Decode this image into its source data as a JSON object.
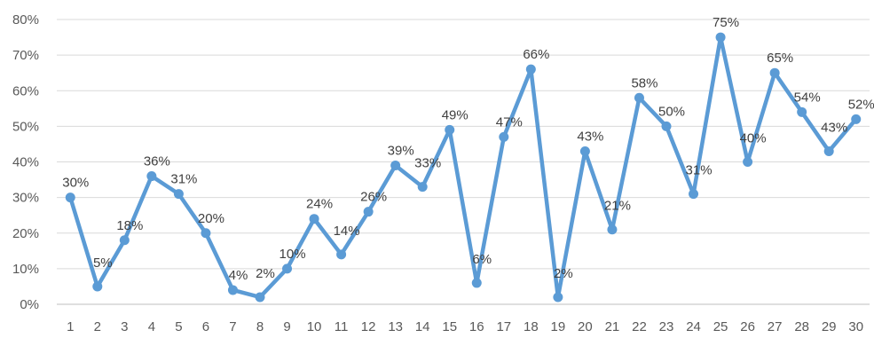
{
  "chart_data": {
    "type": "line",
    "title": "",
    "xlabel": "",
    "ylabel": "",
    "grid": true,
    "legend": "none",
    "ylim": [
      0,
      80
    ],
    "y_ticks": [
      0,
      10,
      20,
      30,
      40,
      50,
      60,
      70,
      80
    ],
    "y_tick_labels": [
      "0%",
      "10%",
      "20%",
      "30%",
      "40%",
      "50%",
      "60%",
      "70%",
      "80%"
    ],
    "categories": [
      "1",
      "2",
      "3",
      "4",
      "5",
      "6",
      "7",
      "8",
      "9",
      "10",
      "11",
      "12",
      "13",
      "14",
      "15",
      "16",
      "17",
      "18",
      "19",
      "20",
      "21",
      "22",
      "23",
      "24",
      "25",
      "26",
      "27",
      "28",
      "29",
      "30"
    ],
    "series": [
      {
        "values": [
          30,
          5,
          18,
          36,
          31,
          20,
          4,
          2,
          10,
          24,
          14,
          26,
          39,
          33,
          49,
          6,
          47,
          66,
          2,
          43,
          21,
          58,
          50,
          31,
          75,
          40,
          65,
          54,
          43,
          52
        ],
        "data_labels": [
          "30%",
          "5%",
          "18%",
          "36%",
          "31%",
          "20%",
          "4%",
          "2%",
          "10%",
          "24%",
          "14%",
          "26%",
          "39%",
          "33%",
          "49%",
          "6%",
          "47%",
          "66%",
          "2%",
          "43%",
          "21%",
          "58%",
          "50%",
          "31%",
          "75%",
          "40%",
          "65%",
          "54%",
          "43%",
          "52%"
        ],
        "color": "#5b9bd5"
      }
    ],
    "gridline_color": "#d9d9d9",
    "label_color": "#404040"
  }
}
